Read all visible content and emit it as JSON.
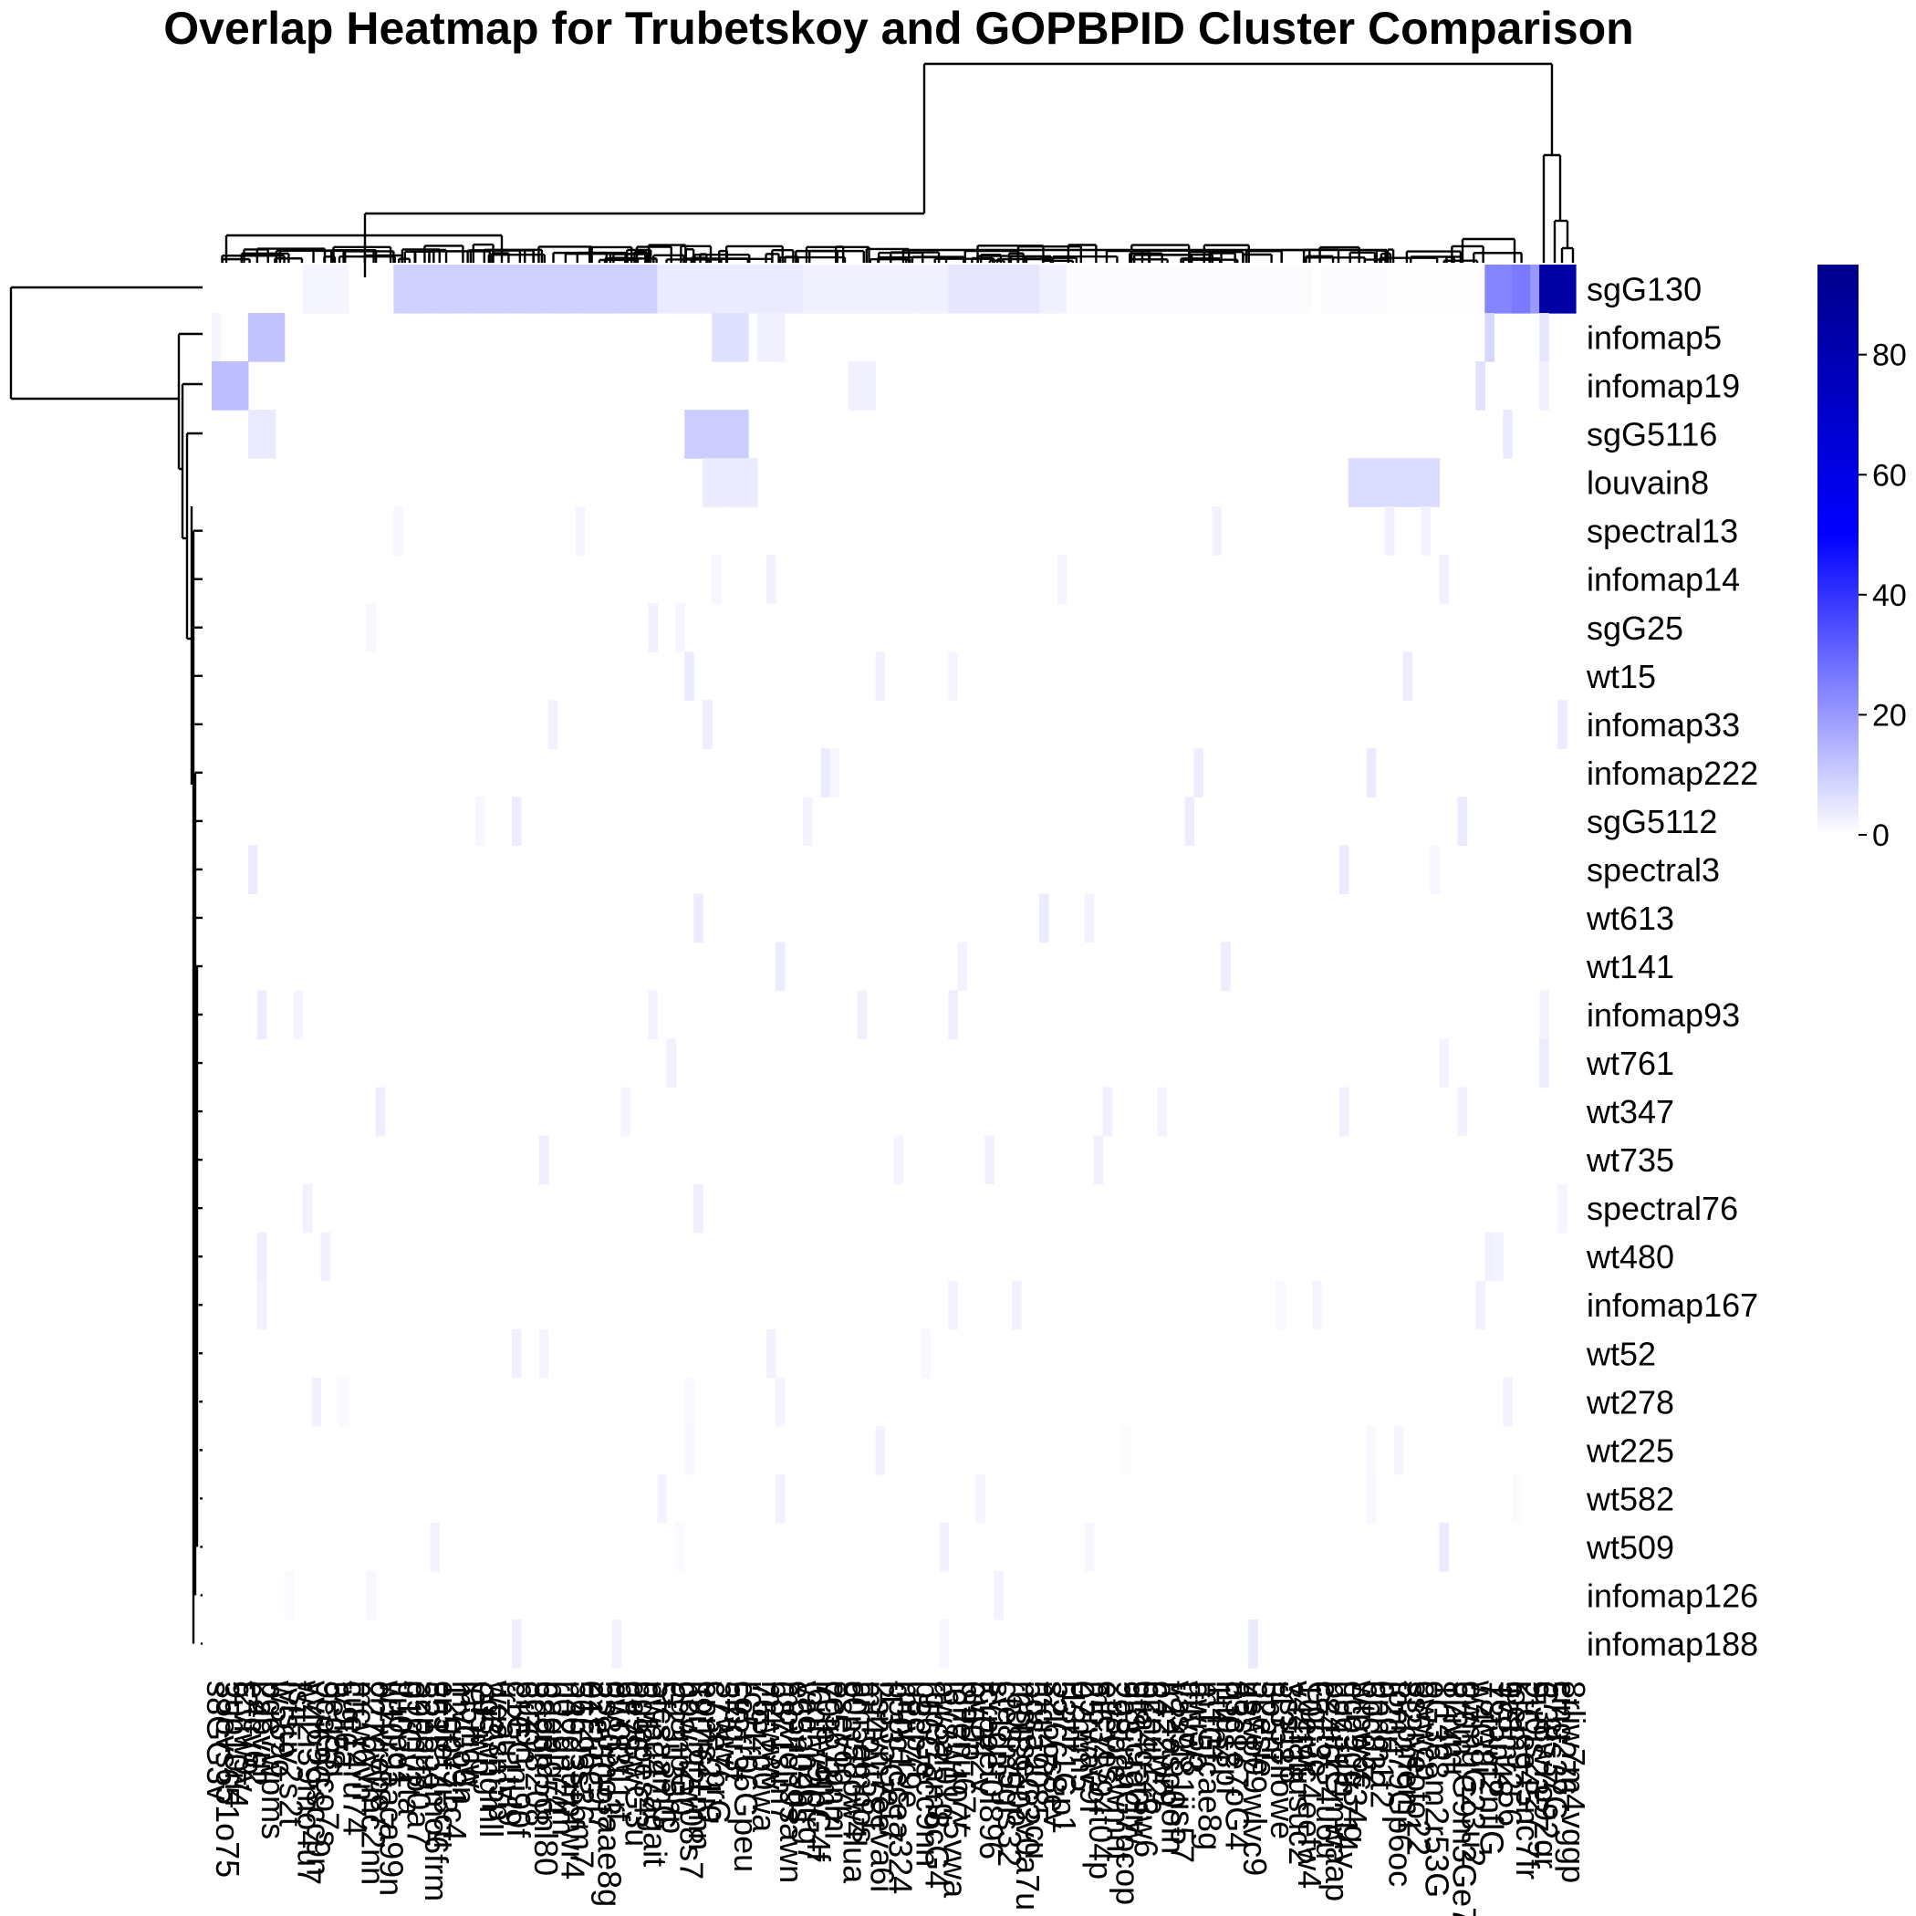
{
  "chart_data": {
    "type": "heatmap",
    "title": "Overlap Heatmap for Trubetskoy and GOPBPID Cluster Comparison",
    "row_labels": [
      "sgG130",
      "infomap5",
      "infomap19",
      "sgG5116",
      "louvain8",
      "spectral13",
      "infomap14",
      "sgG25",
      "wt15",
      "infomap33",
      "infomap222",
      "sgG5112",
      "spectral3",
      "wt613",
      "wt141",
      "infomap93",
      "wt761",
      "wt347",
      "wt735",
      "spectral76",
      "wt480",
      "infomap167",
      "wt52",
      "wt278",
      "wt225",
      "wt582",
      "wt509",
      "infomap126",
      "infomap188"
    ],
    "column_labels_note": "column labels are illegible (overlapping, rotated)",
    "column_count": 150,
    "color_scale": {
      "min": 0,
      "max": 95,
      "stops": [
        [
          0,
          "#FFFFFF"
        ],
        [
          50,
          "#0000FF"
        ],
        [
          95,
          "#00008B"
        ]
      ],
      "ticks": [
        0,
        20,
        40,
        60,
        80
      ]
    },
    "highlights": [
      {
        "row": "sgG130",
        "columns": "right-most 4 columns",
        "value_range": [
          70,
          90
        ]
      },
      {
        "row": "sgG130",
        "columns": "right-side block",
        "value_range": [
          20,
          30
        ]
      },
      {
        "row": "sgG130",
        "columns": "left-center broad band",
        "value_range": [
          3,
          12
        ]
      },
      {
        "row": "infomap5",
        "columns": "left block",
        "value_range": [
          8,
          15
        ]
      },
      {
        "row": "infomap19",
        "columns": "far-left block",
        "value_range": [
          8,
          15
        ]
      },
      {
        "row": "sgG5116",
        "columns": "center block",
        "value_range": [
          6,
          12
        ]
      },
      {
        "row": "louvain8",
        "columns": "right block",
        "value_range": [
          5,
          10
        ]
      }
    ],
    "others": "most cells near 0"
  }
}
